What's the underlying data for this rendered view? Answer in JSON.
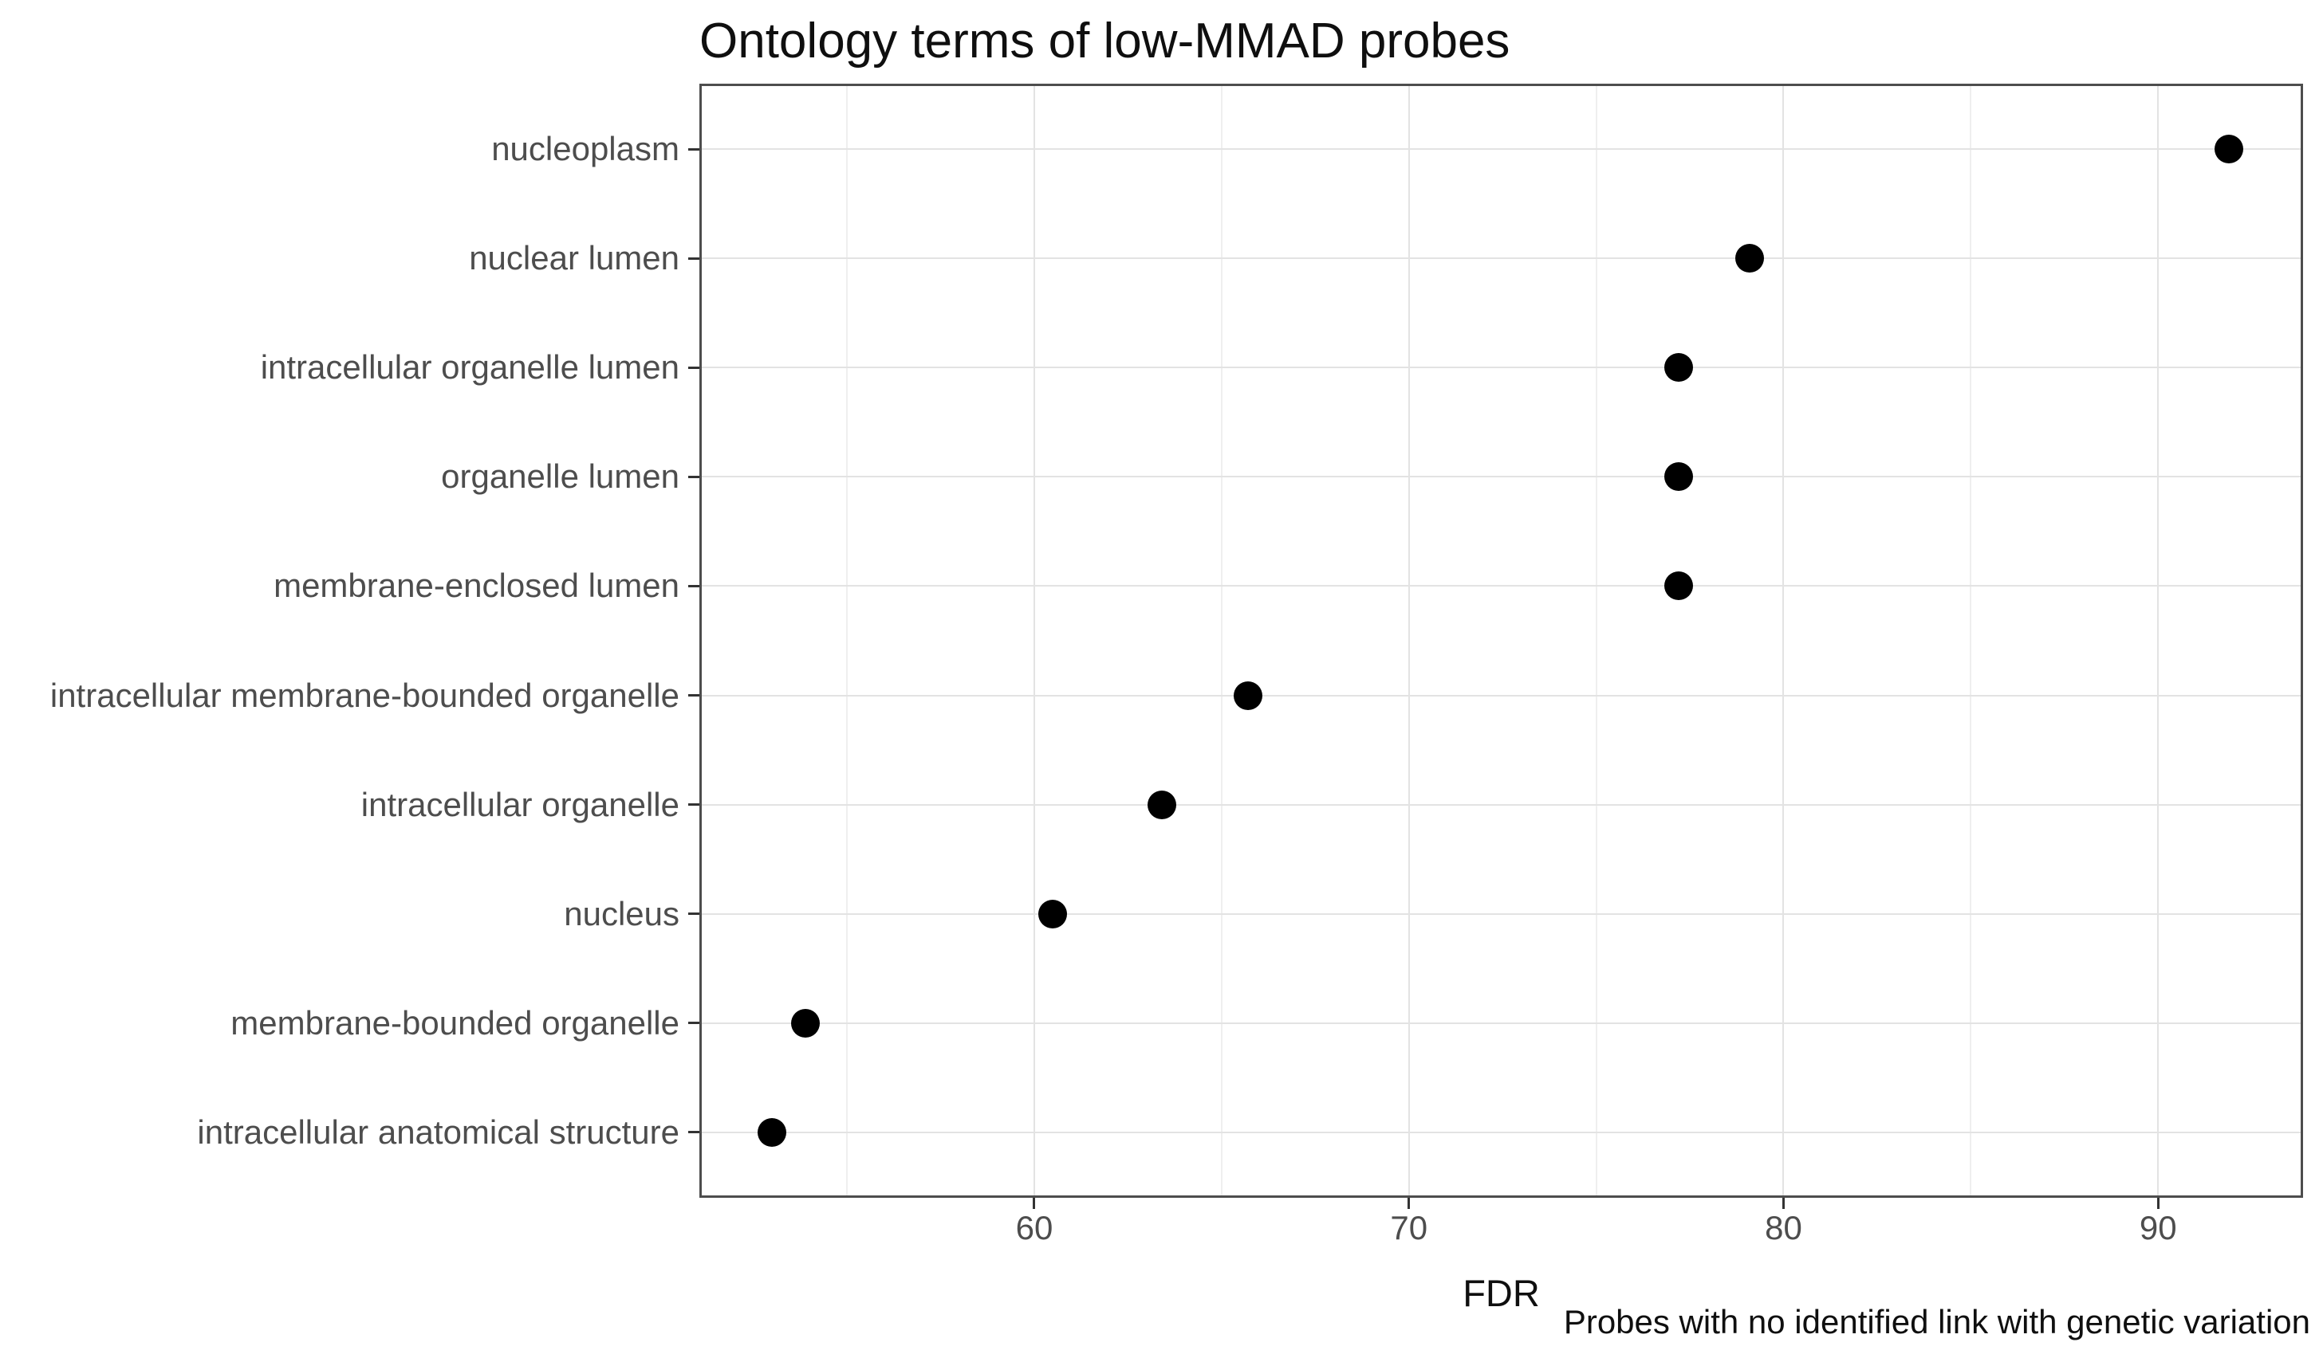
{
  "chart_data": {
    "type": "scatter",
    "subtype": "cleveland-dot-plot",
    "title": "Ontology terms of low-MMAD probes",
    "xlabel": "FDR",
    "ylabel": "",
    "caption": "Probes with no identified link with genetic variation",
    "categories": [
      "nucleoplasm",
      "nuclear lumen",
      "intracellular organelle lumen",
      "organelle lumen",
      "membrane-enclosed lumen",
      "intracellular membrane-bounded organelle",
      "intracellular organelle",
      "nucleus",
      "membrane-bounded organelle",
      "intracellular anatomical structure"
    ],
    "values": [
      91.9,
      79.1,
      77.2,
      77.2,
      77.2,
      65.7,
      63.4,
      60.5,
      53.9,
      53.0
    ],
    "xlim": [
      51.06,
      93.87
    ],
    "x_ticks": [
      60,
      70,
      80,
      90
    ],
    "x_minor_gridlines": [
      55,
      65,
      75,
      85
    ],
    "grid": true,
    "legend": "none",
    "point_color": "#000000"
  },
  "colors": {
    "point": "#000000",
    "grid_major": "#e3e3e3",
    "grid_minor": "#efefef",
    "panel_border": "#4d4d4d",
    "tick": "#333333",
    "axis_text": "#4d4d4d",
    "title_text": "#0f0f0f",
    "background": "#ffffff"
  }
}
